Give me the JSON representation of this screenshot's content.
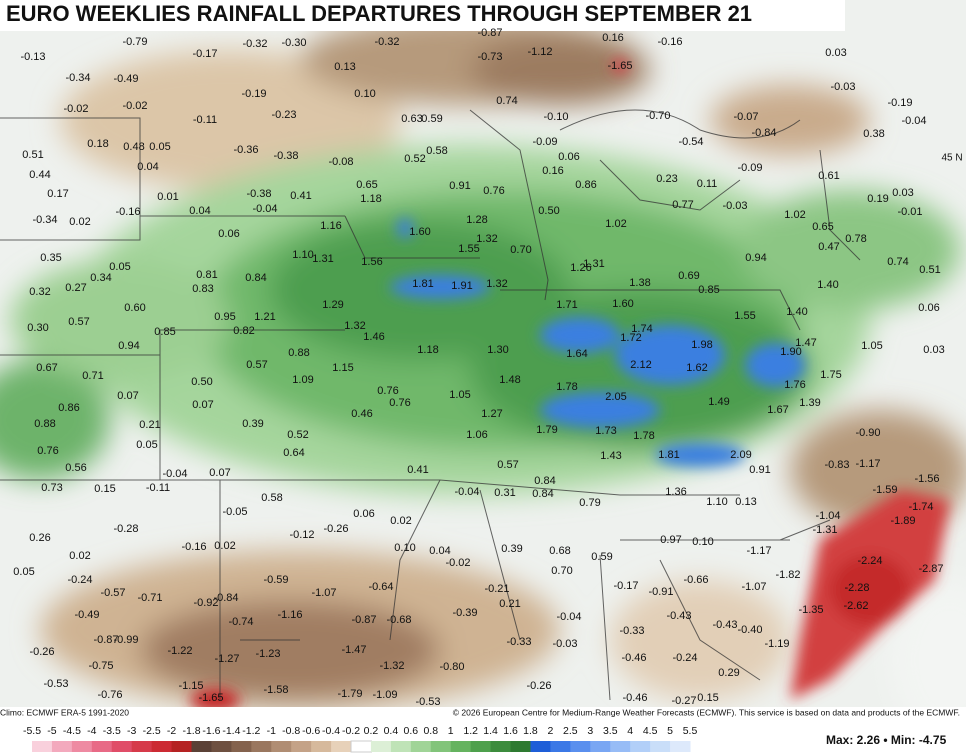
{
  "header": {
    "title": "EURO WEEKLIES RAINFALL DEPARTURES THROUGH SEPTEMBER 21"
  },
  "map": {
    "grid_label": "45 N",
    "labels": [
      "-0.13",
      "-0.79",
      "-0.17",
      "-0.32",
      "-0.30",
      "-0.32",
      "-0.87",
      "0.16",
      "-0.16",
      "0.03",
      "-0.34",
      "-0.49",
      "0.13",
      "-0.73",
      "-1.12",
      "-1.65",
      "-0.03",
      "-0.02",
      "-0.02",
      "-0.19",
      "0.10",
      "0.74",
      "-0.19",
      "-0.11",
      "-0.23",
      "0.63",
      "0.59",
      "-0.10",
      "-0.70",
      "-0.07",
      "0.38",
      "-0.04",
      "0.18",
      "0.48",
      "0.05",
      "-0.36",
      "-0.38",
      "0.58",
      "-0.09",
      "-0.54",
      "-0.84",
      "0.51",
      "0.04",
      "-0.08",
      "0.52",
      "0.06",
      "-0.09",
      "0.61",
      "0.44",
      "0.16",
      "0.86",
      "0.23",
      "0.11",
      "0.17",
      "0.01",
      "0.65",
      "0.91",
      "0.76",
      "1.18",
      "-0.38",
      "0.41",
      "0.04",
      "-0.04",
      "0.77",
      "-0.03",
      "0.03",
      "0.19",
      "-0.01",
      "-0.16",
      "-0.34",
      "0.02",
      "0.50",
      "1.02",
      "1.02",
      "0.65",
      "0.06",
      "1.16",
      "1.60",
      "1.28",
      "1.32",
      "1.55",
      "0.70",
      "0.47",
      "0.78",
      "0.35",
      "1.10",
      "1.31",
      "1.56",
      "1.26",
      "1.31",
      "0.94",
      "0.74",
      "0.51",
      "0.05",
      "0.81",
      "0.84",
      "0.34",
      "0.27",
      "0.32",
      "0.83",
      "1.81",
      "1.91",
      "1.32",
      "1.38",
      "0.69",
      "0.85",
      "1.40",
      "0.60",
      "1.29",
      "1.71",
      "1.60",
      "0.06",
      "0.57",
      "0.95",
      "1.21",
      "1.55",
      "1.40",
      "0.30",
      "0.85",
      "0.82",
      "1.32",
      "1.46",
      "1.74",
      "1.72",
      "0.94",
      "1.18",
      "1.30",
      "1.64",
      "1.98",
      "1.90",
      "1.47",
      "1.05",
      "0.03",
      "0.88",
      "0.57",
      "2.12",
      "1.62",
      "0.67",
      "0.71",
      "1.15",
      "1.09",
      "1.48",
      "0.50",
      "1.78",
      "1.76",
      "1.75",
      "0.07",
      "0.76",
      "0.76",
      "1.05",
      "2.05",
      "1.49",
      "1.39",
      "0.07",
      "0.86",
      "1.67",
      "0.46",
      "1.27",
      "0.88",
      "0.21",
      "0.39",
      "1.79",
      "1.73",
      "1.78",
      "-0.90",
      "1.06",
      "0.52",
      "0.76",
      "0.05",
      "0.64",
      "1.43",
      "1.81",
      "2.09",
      "-0.83",
      "-1.17",
      "0.56",
      "0.57",
      "0.91",
      "-0.04",
      "0.07",
      "0.41",
      "0.84",
      "-1.56",
      "0.73",
      "0.15",
      "-0.11",
      "-0.04",
      "0.31",
      "0.84",
      "1.36",
      "-1.59",
      "0.58",
      "0.79",
      "1.10",
      "0.13",
      "-1.74",
      "-0.05",
      "0.06",
      "0.02",
      "-0.26",
      "-0.28",
      "-0.12",
      "-1.04",
      "-1.31",
      "-1.89",
      "0.26",
      "0.97",
      "0.10",
      "-0.16",
      "0.02",
      "0.10",
      "0.04",
      "0.39",
      "0.68",
      "0.59",
      "-1.17",
      "0.02",
      "-0.02",
      "0.70",
      "-2.24",
      "-2.87",
      "-0.24",
      "-1.82",
      "0.05",
      "-0.17",
      "-0.66",
      "-1.07",
      "-2.28",
      "-0.59",
      "-0.21",
      "-0.57",
      "-0.71",
      "-0.92",
      "-0.84",
      "-1.07",
      "-0.64",
      "-0.91",
      "-0.49",
      "-1.16",
      "0.21",
      "-0.04",
      "-0.43",
      "-2.62",
      "-1.35",
      "-0.39",
      "-0.74",
      "-0.87",
      "-0.68",
      "-0.40",
      "-0.43",
      "-0.87",
      "-0.99",
      "-0.33",
      "-0.33",
      "-0.03",
      "-1.19",
      "-0.26",
      "-1.22",
      "-1.23",
      "-1.47",
      "-1.27",
      "-0.46",
      "-0.24",
      "-0.75",
      "-1.32",
      "-0.80",
      "0.29",
      "-0.53",
      "-1.15",
      "-1.58",
      "-0.26",
      "-0.76",
      "-1.65",
      "-1.79",
      "-1.09",
      "-0.53",
      "-0.46",
      "-0.27",
      "0.15"
    ]
  },
  "legend": {
    "ticks": [
      "-5.5",
      "-5",
      "-4.5",
      "-4",
      "-3.5",
      "-3",
      "-2.5",
      "-2",
      "-1.8",
      "-1.6",
      "-1.4",
      "-1.2",
      "-1",
      "-0.8",
      "-0.6",
      "-0.4",
      "-0.2",
      "0.2",
      "0.4",
      "0.6",
      "0.8",
      "1",
      "1.2",
      "1.4",
      "1.6",
      "1.8",
      "2",
      "2.5",
      "3",
      "3.5",
      "4",
      "4.5",
      "5",
      "5.5"
    ],
    "colors": [
      "#f9d0dc",
      "#f3a9bd",
      "#ee8aa2",
      "#e86a86",
      "#e04d68",
      "#d63a4a",
      "#cc2a33",
      "#b52222",
      "#5b4136",
      "#6e5040",
      "#84624d",
      "#9a775f",
      "#b08d73",
      "#c4a287",
      "#d6b99c",
      "#e7d1b9",
      "#ffffff",
      "#dcefd6",
      "#bfe3b7",
      "#a0d497",
      "#82c47a",
      "#65b35f",
      "#4ea04c",
      "#3c8c3d",
      "#2e7a31",
      "#1e5ed8",
      "#3b78e6",
      "#5a8fee",
      "#79a6f3",
      "#97bcf6",
      "#b2cff8",
      "#c9def9",
      "#dde9fb"
    ]
  },
  "footer": {
    "climo": "Climo: ECMWF ERA-5 1991-2020",
    "copyright": "© 2026 European Centre for Medium-Range Weather Forecasts (ECMWF). This service is based on data and products of the ECMWF.",
    "stats": "Max: 2.26 • Min: -4.75"
  }
}
